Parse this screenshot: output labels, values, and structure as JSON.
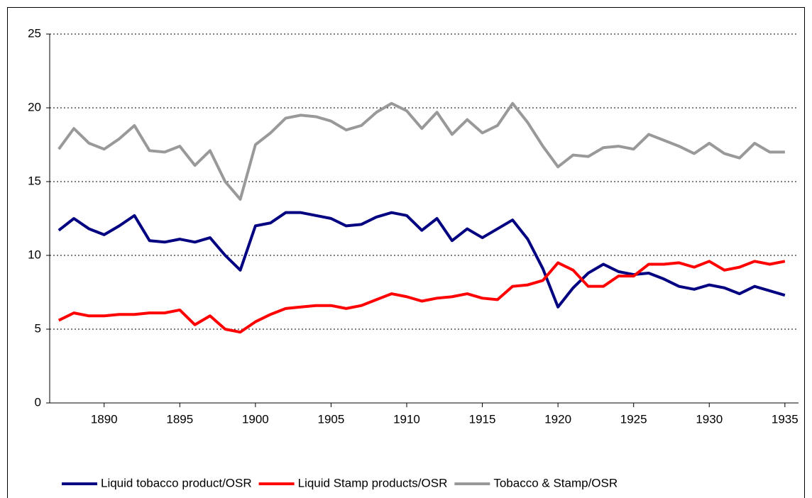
{
  "chart_data": {
    "type": "line",
    "x": [
      1887,
      1888,
      1889,
      1890,
      1891,
      1892,
      1893,
      1894,
      1895,
      1896,
      1897,
      1898,
      1899,
      1900,
      1901,
      1902,
      1903,
      1904,
      1905,
      1906,
      1907,
      1908,
      1909,
      1910,
      1911,
      1912,
      1913,
      1914,
      1915,
      1916,
      1917,
      1918,
      1919,
      1920,
      1921,
      1922,
      1923,
      1924,
      1925,
      1926,
      1927,
      1928,
      1929,
      1930,
      1931,
      1932,
      1933,
      1934,
      1935
    ],
    "series": [
      {
        "name": "Liquid tobacco product/OSR",
        "color": "#000080",
        "values": [
          11.7,
          12.5,
          11.8,
          11.4,
          12.0,
          12.7,
          11.0,
          10.9,
          11.1,
          10.9,
          11.2,
          10.0,
          9.0,
          12.0,
          12.2,
          12.9,
          12.9,
          12.7,
          12.5,
          12.0,
          12.1,
          12.6,
          12.9,
          12.7,
          11.7,
          12.5,
          11.0,
          11.8,
          11.2,
          11.8,
          12.4,
          11.1,
          9.1,
          6.5,
          7.8,
          8.8,
          9.4,
          8.9,
          8.7,
          8.8,
          8.4,
          7.9,
          7.7,
          8.0,
          7.8,
          7.4,
          7.9,
          7.6,
          7.3
        ]
      },
      {
        "name": "Liquid Stamp products/OSR",
        "color": "#ff0000",
        "values": [
          5.6,
          6.1,
          5.9,
          5.9,
          6.0,
          6.0,
          6.1,
          6.1,
          6.3,
          5.3,
          5.9,
          5.0,
          4.8,
          5.5,
          6.0,
          6.4,
          6.5,
          6.6,
          6.6,
          6.4,
          6.6,
          7.0,
          7.4,
          7.2,
          6.9,
          7.1,
          7.2,
          7.4,
          7.1,
          7.0,
          7.9,
          8.0,
          8.3,
          9.5,
          9.0,
          7.9,
          7.9,
          8.6,
          8.6,
          9.4,
          9.4,
          9.5,
          9.2,
          9.6,
          9.0,
          9.2,
          9.6,
          9.4,
          9.6
        ]
      },
      {
        "name": "Tobacco & Stamp/OSR",
        "color": "#999999",
        "values": [
          17.2,
          18.6,
          17.6,
          17.2,
          17.9,
          18.8,
          17.1,
          17.0,
          17.4,
          16.1,
          17.1,
          15.0,
          13.8,
          17.5,
          18.3,
          19.3,
          19.5,
          19.4,
          19.1,
          18.5,
          18.8,
          19.7,
          20.3,
          19.8,
          18.6,
          19.7,
          18.2,
          19.2,
          18.3,
          18.8,
          20.3,
          19.0,
          17.4,
          16.0,
          16.8,
          16.7,
          17.3,
          17.4,
          17.2,
          18.2,
          17.8,
          17.4,
          16.9,
          17.6,
          16.9,
          16.6,
          17.6,
          17.0,
          17.0
        ]
      }
    ],
    "xlim": [
      1886.4,
      1935.9
    ],
    "xticks": [
      1890,
      1895,
      1900,
      1905,
      1910,
      1915,
      1920,
      1925,
      1930,
      1935
    ],
    "ylim": [
      0,
      25
    ],
    "yticks": [
      0,
      5,
      10,
      15,
      20,
      25
    ],
    "grid": true,
    "legend": "bottom"
  }
}
